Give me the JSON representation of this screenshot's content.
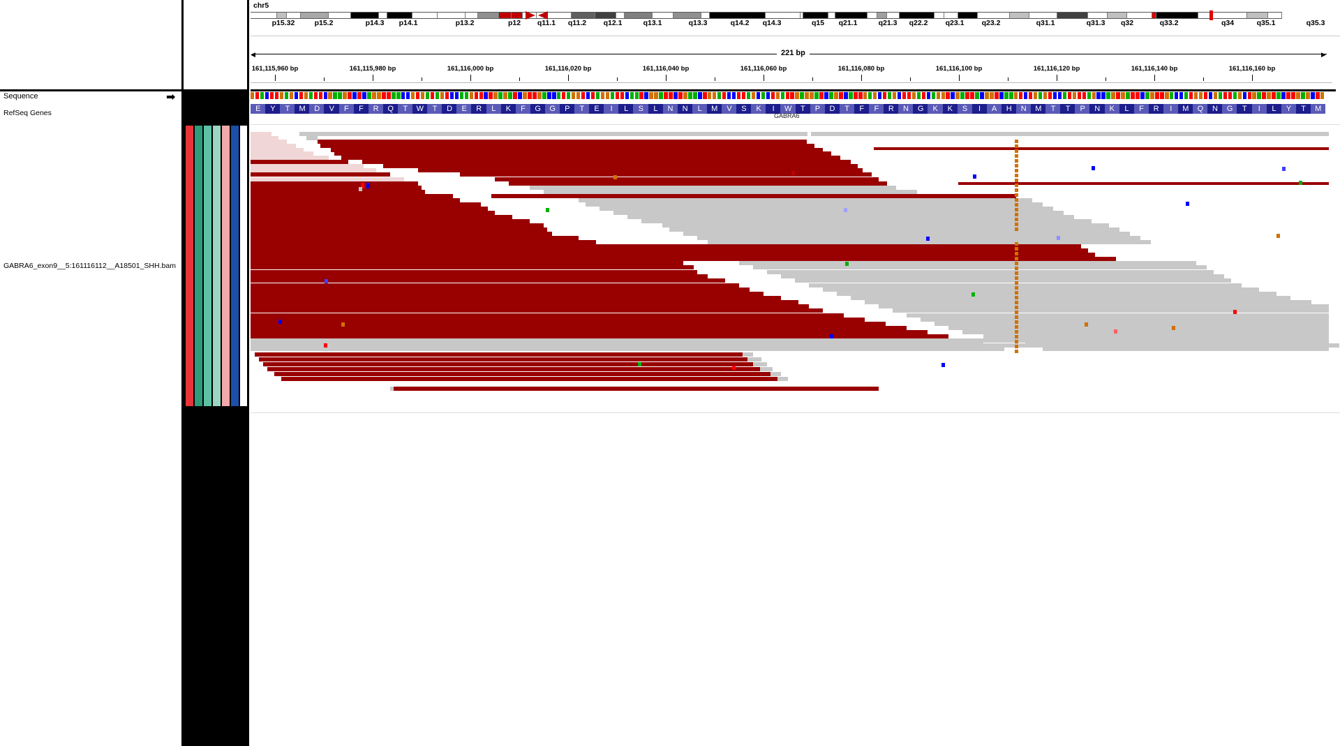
{
  "names_panel": {
    "tracks": [
      {
        "id": "sequence",
        "label": "Sequence",
        "arrow": "➡"
      },
      {
        "id": "refseq",
        "label": "RefSeq Genes"
      },
      {
        "id": "bam",
        "label": "GABRA6_exon9__5:161116112__A18501_SHH.bam"
      }
    ]
  },
  "attributes": {
    "colors": [
      "#e8343a",
      "#2e9b7a",
      "#5fc1a3",
      "#9ad6c2",
      "#f2a9a9",
      "#1c4fa8",
      "#ffffff"
    ]
  },
  "ideogram": {
    "chromosome": "chr5",
    "bands": [
      {
        "name": "p15.32",
        "stain": "#fff",
        "w": 38
      },
      {
        "name": "",
        "stain": "#c0c0c0",
        "w": 14
      },
      {
        "name": "p15.2",
        "stain": "#fff",
        "w": 20
      },
      {
        "name": "",
        "stain": "#a8a8a8",
        "w": 40
      },
      {
        "name": "",
        "stain": "#fff",
        "w": 32
      },
      {
        "name": "p14.3",
        "stain": "#000",
        "w": 40
      },
      {
        "name": "",
        "stain": "#fff",
        "w": 12
      },
      {
        "name": "p14.1",
        "stain": "#000",
        "w": 36
      },
      {
        "name": "",
        "stain": "#fff",
        "w": 36
      },
      {
        "name": "p13.2",
        "stain": "#fff",
        "w": 40
      },
      {
        "name": "",
        "stain": "#fff",
        "w": 18
      },
      {
        "name": "p12",
        "stain": "#909090",
        "w": 30
      },
      {
        "name": "",
        "stain": "#c00000",
        "w": 18
      },
      {
        "name": "q11.1",
        "stain": "#c00000",
        "w": 16
      },
      {
        "name": "",
        "stain": "#fff",
        "w": 20
      },
      {
        "name": "q11.2",
        "stain": "#fff",
        "w": 50
      },
      {
        "name": "q12.1",
        "stain": "#606060",
        "w": 34
      },
      {
        "name": "",
        "stain": "#404040",
        "w": 30
      },
      {
        "name": "q13.1",
        "stain": "#fff",
        "w": 12
      },
      {
        "name": "",
        "stain": "#808080",
        "w": 40
      },
      {
        "name": "q13.3",
        "stain": "#fff",
        "w": 30
      },
      {
        "name": "",
        "stain": "#909090",
        "w": 40
      },
      {
        "name": "q14.2",
        "stain": "#fff",
        "w": 12
      },
      {
        "name": "q14.3",
        "stain": "#000",
        "w": 80
      },
      {
        "name": "",
        "stain": "#fff",
        "w": 50
      },
      {
        "name": "q15",
        "stain": "#fff",
        "w": 4
      },
      {
        "name": "q21.1",
        "stain": "#000",
        "w": 36
      },
      {
        "name": "",
        "stain": "#fff",
        "w": 10
      },
      {
        "name": "q21.3",
        "stain": "#000",
        "w": 46
      },
      {
        "name": "",
        "stain": "#fff",
        "w": 14
      },
      {
        "name": "q22.2",
        "stain": "#a0a0a0",
        "w": 14
      },
      {
        "name": "",
        "stain": "#fff",
        "w": 18
      },
      {
        "name": "q23.1",
        "stain": "#000",
        "w": 50
      },
      {
        "name": "",
        "stain": "#fff",
        "w": 14
      },
      {
        "name": "q23.2",
        "stain": "#fff",
        "w": 20
      },
      {
        "name": "",
        "stain": "#000",
        "w": 28
      },
      {
        "name": "q31.1",
        "stain": "#fff",
        "w": 46
      },
      {
        "name": "",
        "stain": "#c0c0c0",
        "w": 28
      },
      {
        "name": "q31.3",
        "stain": "#fff",
        "w": 40
      },
      {
        "name": "q32",
        "stain": "#404040",
        "w": 44
      },
      {
        "name": "",
        "stain": "#fff",
        "w": 28
      },
      {
        "name": "q33.2",
        "stain": "#c0c0c0",
        "w": 28
      },
      {
        "name": "",
        "stain": "#fff",
        "w": 36
      },
      {
        "name": "",
        "stain": "#e00000",
        "w": 6
      },
      {
        "name": "q34",
        "stain": "#000",
        "w": 60
      },
      {
        "name": "q35.1",
        "stain": "#fff",
        "w": 70
      },
      {
        "name": "",
        "stain": "#c0c0c0",
        "w": 30
      },
      {
        "name": "q35.3",
        "stain": "#fff",
        "w": 20
      }
    ],
    "band_labels": [
      {
        "name": "p15.32",
        "x": 47
      },
      {
        "name": "p15.2",
        "x": 105
      },
      {
        "name": "p14.3",
        "x": 178
      },
      {
        "name": "p14.1",
        "x": 226
      },
      {
        "name": "p13.2",
        "x": 307
      },
      {
        "name": "p12",
        "x": 378
      },
      {
        "name": "q11.1",
        "x": 424
      },
      {
        "name": "q11.2",
        "x": 468
      },
      {
        "name": "q12.1",
        "x": 519
      },
      {
        "name": "q13.1",
        "x": 576
      },
      {
        "name": "q13.3",
        "x": 641
      },
      {
        "name": "q14.2",
        "x": 701
      },
      {
        "name": "q14.3",
        "x": 747
      },
      {
        "name": "q15",
        "x": 813
      },
      {
        "name": "q21.1",
        "x": 856
      },
      {
        "name": "q21.3",
        "x": 913
      },
      {
        "name": "q22.2",
        "x": 957
      },
      {
        "name": "q23.1",
        "x": 1009
      },
      {
        "name": "q23.2",
        "x": 1061
      },
      {
        "name": "q31.1",
        "x": 1139
      },
      {
        "name": "q31.3",
        "x": 1211
      },
      {
        "name": "q32",
        "x": 1256
      },
      {
        "name": "q33.2",
        "x": 1316
      },
      {
        "name": "q34",
        "x": 1400
      },
      {
        "name": "q35.1",
        "x": 1455
      },
      {
        "name": "q35.3",
        "x": 1526
      }
    ]
  },
  "ruler": {
    "span_label": "221 bp",
    "ticks": [
      {
        "label": "161,115,960 bp"
      },
      {
        "label": "161,115,980 bp"
      },
      {
        "label": "161,116,000 bp"
      },
      {
        "label": "161,116,020 bp"
      },
      {
        "label": "161,116,040 bp"
      },
      {
        "label": "161,116,060 bp"
      },
      {
        "label": "161,116,080 bp"
      },
      {
        "label": "161,116,100 bp"
      },
      {
        "label": "161,116,120 bp"
      },
      {
        "label": "161,116,140 bp"
      },
      {
        "label": "161,116,160 bp"
      }
    ]
  },
  "sequence": {
    "amino_acids": "EYTMDVFFRQTWTDERLKFGGPTEILSLNNLMVSKIWTPDTFFRNGKKSIAHNMTTPNKLFRIMQNGTILYTM"
  },
  "gene": {
    "name": "GABRA6"
  },
  "colors": {
    "forward_read": "#990000",
    "reverse_read": "#c8c8c8",
    "soft_read": "#f0d6d6",
    "aa_dark": "#1d1d8c",
    "aa_light": "#5a5ab8",
    "base_A": "#00b000",
    "base_C": "#0000ff",
    "base_G": "#d17105",
    "base_T": "#ff0000",
    "variant": "#d17105"
  }
}
